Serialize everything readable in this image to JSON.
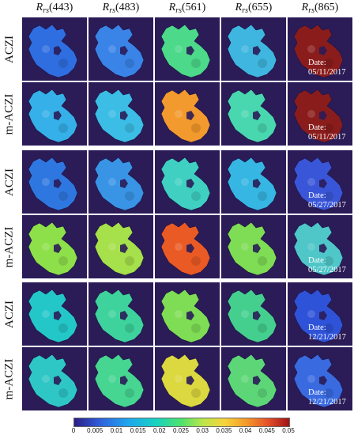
{
  "column_headers": [
    {
      "symbol": "R",
      "subscript": "rs",
      "value": "(443)"
    },
    {
      "symbol": "R",
      "subscript": "rs",
      "value": "(483)"
    },
    {
      "symbol": "R",
      "subscript": "rs",
      "value": "(561)"
    },
    {
      "symbol": "R",
      "subscript": "rs",
      "value": "(655)"
    },
    {
      "symbol": "R",
      "subscript": "rs",
      "value": "(865)"
    }
  ],
  "row_labels": [
    "ACZI",
    "m-ACZI",
    "ACZI",
    "m-ACZI",
    "ACZI",
    "m-ACZI"
  ],
  "date_label": "Date:",
  "dates": [
    "05/11/2017",
    "05/11/2017",
    "05/27/2017",
    "05/27/2017",
    "12/21/2017",
    "12/21/2017"
  ],
  "panel_colors": [
    [
      "#2f6ee0",
      "#3a84e8",
      "#4cd98a",
      "#3fb6df",
      "#8a1d1c"
    ],
    [
      "#35b0e8",
      "#3bbde6",
      "#f39a2e",
      "#49d7b0",
      "#8a1d1c"
    ],
    [
      "#2f77e0",
      "#3994e6",
      "#3fd0c2",
      "#36b6e2",
      "#3a56d8"
    ],
    [
      "#8ee04a",
      "#a6e04a",
      "#ea5a24",
      "#7fdc55",
      "#4fc6c8"
    ],
    [
      "#24c7c8",
      "#3ed39d",
      "#7fdd55",
      "#45cf8f",
      "#2f53d8"
    ],
    [
      "#2ec7c6",
      "#47d592",
      "#dcd83f",
      "#5dd678",
      "#3a6ae0"
    ]
  ],
  "colorbar": {
    "ticks": [
      "0",
      "0.005",
      "0.01",
      "0.015",
      "0.02",
      "0.025",
      "0.03",
      "0.035",
      "0.04",
      "0.045",
      "0.05"
    ]
  }
}
